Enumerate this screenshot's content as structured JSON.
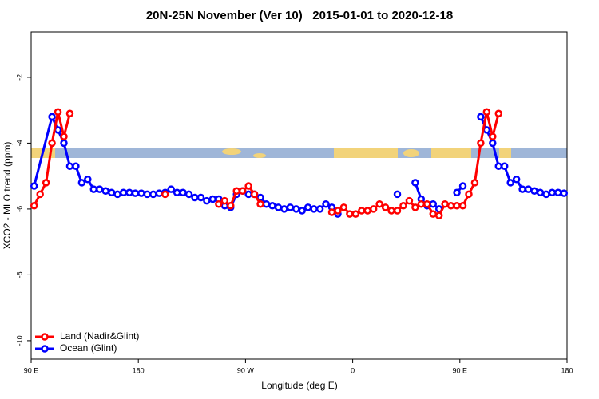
{
  "chart_data": {
    "type": "line",
    "title": "20N-25N November (Ver 10)   2015-01-01 to 2020-12-18",
    "xlabel": "Longitude (deg E)",
    "ylabel": "XCO2 - MLO trend (ppm)",
    "xlim": [
      90,
      540
    ],
    "xticks": [
      {
        "value": 90,
        "label": "90 E"
      },
      180,
      {
        "value": 270,
        "label": "90 W"
      },
      {
        "value": 360,
        "label": "0"
      },
      {
        "value": 450,
        "label": "90 E"
      },
      180
    ],
    "ylim": [
      -10.56,
      -0.62
    ],
    "yticks": [
      -2,
      -4,
      -6,
      -8,
      -10
    ],
    "legend": "bottom-left",
    "series": [
      {
        "name": "Ocean (Glint)",
        "color": "#0000ff",
        "x": [
          92.5,
          107.5,
          112.5,
          117.5,
          122.5,
          127.5,
          132.5,
          137.5,
          142.5,
          147.5,
          152.5,
          157.5,
          162.5,
          167.5,
          172.5,
          177.5,
          182.5,
          187.5,
          192.5,
          197.5,
          202.5,
          207.5,
          212.5,
          217.5,
          222.5,
          227.5,
          232.5,
          237.5,
          242.5,
          247.5,
          252.5,
          257.5,
          262.5,
          267.5,
          272.5,
          277.5,
          282.5,
          287.5,
          292.5,
          297.5,
          302.5,
          307.5,
          312.5,
          317.5,
          322.5,
          327.5,
          332.5,
          337.5,
          342.5,
          347.5,
          null,
          397.5,
          null,
          412.5,
          417.5,
          422.5,
          427.5,
          432.5,
          null,
          447.5,
          452.5,
          null,
          467.5,
          472.5,
          477.5,
          482.5,
          487.5,
          492.5,
          497.5,
          502.5,
          507.5,
          512.5,
          517.5,
          522.5,
          527.5,
          532.5,
          537.5
        ],
        "values": [
          -5.3,
          -3.2,
          -3.6,
          -4.0,
          -4.7,
          -4.7,
          -5.2,
          -5.1,
          -5.4,
          -5.4,
          -5.45,
          -5.5,
          -5.55,
          -5.5,
          -5.5,
          -5.52,
          -5.52,
          -5.55,
          -5.55,
          -5.52,
          -5.5,
          -5.4,
          -5.5,
          -5.5,
          -5.55,
          -5.65,
          -5.65,
          -5.75,
          -5.7,
          -5.7,
          -5.9,
          -5.95,
          -5.55,
          -5.45,
          -5.55,
          -5.55,
          -5.65,
          -5.85,
          -5.9,
          -5.95,
          -6.0,
          -5.95,
          -6.0,
          -6.05,
          -5.95,
          -6.0,
          -6.0,
          -5.85,
          -5.95,
          -6.15,
          null,
          -5.55,
          null,
          -5.2,
          -5.7,
          -5.9,
          -5.85,
          -6.0,
          null,
          -5.5,
          -5.3,
          null,
          -3.2,
          -3.6,
          -4.0,
          -4.7,
          -4.7,
          -5.2,
          -5.1,
          -5.4,
          -5.4,
          -5.45,
          -5.5,
          -5.55,
          -5.5,
          -5.5,
          -5.52
        ]
      },
      {
        "name": "Land (Nadir&Glint)",
        "color": "#ff0000",
        "x": [
          92.5,
          97.5,
          102.5,
          107.5,
          112.5,
          117.5,
          122.5,
          null,
          202.5,
          null,
          247.5,
          252.5,
          257.5,
          262.5,
          267.5,
          272.5,
          277.5,
          282.5,
          null,
          342.5,
          347.5,
          352.5,
          357.5,
          362.5,
          367.5,
          372.5,
          377.5,
          382.5,
          387.5,
          392.5,
          397.5,
          402.5,
          407.5,
          412.5,
          417.5,
          422.5,
          427.5,
          432.5,
          437.5,
          442.5,
          447.5,
          452.5,
          457.5,
          462.5,
          467.5,
          472.5,
          477.5,
          482.5
        ],
        "values": [
          -5.9,
          -5.55,
          -5.2,
          -4.0,
          -3.05,
          -3.8,
          -3.1,
          null,
          -5.55,
          null,
          -5.85,
          -5.75,
          -5.9,
          -5.45,
          -5.45,
          -5.3,
          -5.55,
          -5.85,
          null,
          -6.1,
          -6.05,
          -5.95,
          -6.15,
          -6.15,
          -6.05,
          -6.05,
          -6.0,
          -5.85,
          -5.95,
          -6.05,
          -6.05,
          -5.9,
          -5.75,
          -5.95,
          -5.85,
          -5.85,
          -6.15,
          -6.2,
          -5.85,
          -5.9,
          -5.9,
          -5.9,
          -5.55,
          -5.2,
          -4.0,
          -3.05,
          -3.8,
          -3.1
        ]
      }
    ]
  }
}
